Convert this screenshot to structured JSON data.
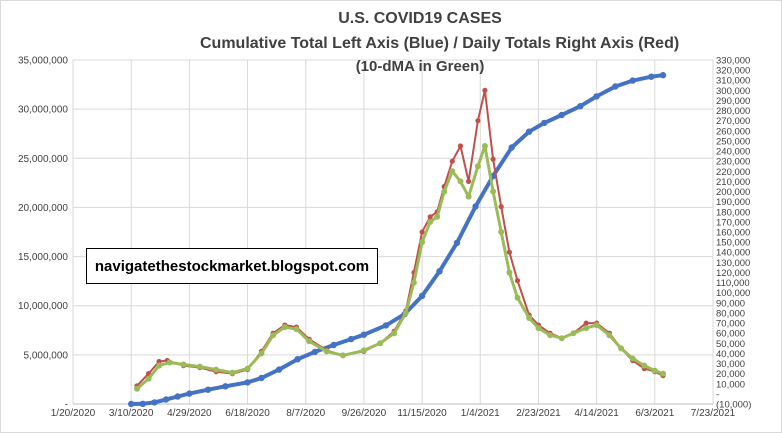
{
  "chart_data": {
    "type": "line",
    "title": "U.S. COVID19 CASES",
    "subtitle": "Cumulative Total Left Axis (Blue) / Daily Totals Right Axis (Red)",
    "subtitle2": "(10-dMA in Green)",
    "annotation": "navigatethestockmarket.blogspot.com",
    "x_tick_labels": [
      "1/20/2020",
      "3/10/2020",
      "4/29/2020",
      "6/18/2020",
      "8/7/2020",
      "9/26/2020",
      "11/15/2020",
      "1/4/2021",
      "2/23/2021",
      "4/14/2021",
      "6/3/2021",
      "7/23/2021"
    ],
    "x_range": [
      "2020-01-20",
      "2021-07-23"
    ],
    "y_left_range": [
      0,
      35000000
    ],
    "y_left_tick_labels": [
      "-",
      "5,000,000",
      "10,000,000",
      "15,000,000",
      "20,000,000",
      "25,000,000",
      "30,000,000",
      "35,000,000"
    ],
    "y_right_range": [
      -10000,
      330000
    ],
    "y_right_tick_labels": [
      "(10,000)",
      "-",
      "10,000",
      "20,000",
      "30,000",
      "40,000",
      "50,000",
      "60,000",
      "70,000",
      "80,000",
      "90,000",
      "100,000",
      "110,000",
      "120,000",
      "130,000",
      "140,000",
      "150,000",
      "160,000",
      "170,000",
      "180,000",
      "190,000",
      "200,000",
      "210,000",
      "220,000",
      "230,000",
      "240,000",
      "250,000",
      "260,000",
      "270,000",
      "280,000",
      "290,000",
      "300,000",
      "310,000",
      "320,000",
      "330,000"
    ],
    "grid": true,
    "series": [
      {
        "axis": "left",
        "color": "#4472c4",
        "x": [
          "2020-03-10",
          "2020-03-20",
          "2020-03-30",
          "2020-04-09",
          "2020-04-19",
          "2020-04-29",
          "2020-05-15",
          "2020-05-30",
          "2020-06-18",
          "2020-06-30",
          "2020-07-15",
          "2020-07-31",
          "2020-08-15",
          "2020-08-31",
          "2020-09-15",
          "2020-09-26",
          "2020-10-15",
          "2020-10-31",
          "2020-11-15",
          "2020-11-30",
          "2020-12-15",
          "2020-12-31",
          "2021-01-15",
          "2021-01-31",
          "2021-02-15",
          "2021-02-28",
          "2021-03-15",
          "2021-03-31",
          "2021-04-14",
          "2021-04-30",
          "2021-05-15",
          "2021-05-31",
          "2021-06-10"
        ],
        "values": [
          1000,
          20000,
          160000,
          460000,
          760000,
          1060000,
          1450000,
          1800000,
          2200000,
          2650000,
          3500000,
          4560000,
          5300000,
          6000000,
          6600000,
          7050000,
          8000000,
          9150000,
          11000000,
          13500000,
          16400000,
          20100000,
          23200000,
          26100000,
          27700000,
          28600000,
          29400000,
          30300000,
          31300000,
          32300000,
          32900000,
          33300000,
          33450000
        ]
      },
      {
        "axis": "right",
        "color": "#c0504d",
        "x": [
          "2020-03-15",
          "2020-03-25",
          "2020-04-03",
          "2020-04-10",
          "2020-04-24",
          "2020-05-08",
          "2020-05-22",
          "2020-06-05",
          "2020-06-18",
          "2020-06-30",
          "2020-07-10",
          "2020-07-20",
          "2020-07-30",
          "2020-08-10",
          "2020-08-25",
          "2020-09-08",
          "2020-09-26",
          "2020-10-10",
          "2020-10-22",
          "2020-11-01",
          "2020-11-08",
          "2020-11-15",
          "2020-11-22",
          "2020-11-28",
          "2020-12-04",
          "2020-12-11",
          "2020-12-18",
          "2020-12-25",
          "2021-01-02",
          "2021-01-08",
          "2021-01-15",
          "2021-01-22",
          "2021-01-29",
          "2021-02-05",
          "2021-02-15",
          "2021-02-23",
          "2021-03-05",
          "2021-03-15",
          "2021-03-25",
          "2021-04-05",
          "2021-04-14",
          "2021-04-25",
          "2021-05-05",
          "2021-05-15",
          "2021-05-25",
          "2021-06-03",
          "2021-06-10"
        ],
        "values": [
          8000,
          20000,
          32000,
          33000,
          28000,
          26000,
          22000,
          20000,
          24000,
          42000,
          60000,
          68000,
          66000,
          54000,
          43000,
          38000,
          42000,
          50000,
          62000,
          82000,
          120000,
          160000,
          175000,
          180000,
          205000,
          230000,
          245000,
          210000,
          270000,
          300000,
          232000,
          185000,
          140000,
          112000,
          78000,
          68000,
          60000,
          55000,
          60000,
          70000,
          70000,
          60000,
          45000,
          33000,
          25000,
          22000,
          18000
        ]
      },
      {
        "axis": "right",
        "color": "#9bbb59",
        "x": [
          "2020-03-15",
          "2020-03-25",
          "2020-04-03",
          "2020-04-12",
          "2020-04-24",
          "2020-05-08",
          "2020-05-22",
          "2020-06-05",
          "2020-06-18",
          "2020-06-30",
          "2020-07-10",
          "2020-07-20",
          "2020-07-30",
          "2020-08-10",
          "2020-08-25",
          "2020-09-08",
          "2020-09-26",
          "2020-10-10",
          "2020-10-22",
          "2020-11-01",
          "2020-11-08",
          "2020-11-15",
          "2020-11-22",
          "2020-11-28",
          "2020-12-04",
          "2020-12-11",
          "2020-12-18",
          "2020-12-25",
          "2021-01-02",
          "2021-01-08",
          "2021-01-15",
          "2021-01-22",
          "2021-01-29",
          "2021-02-05",
          "2021-02-15",
          "2021-02-23",
          "2021-03-05",
          "2021-03-15",
          "2021-03-25",
          "2021-04-05",
          "2021-04-14",
          "2021-04-25",
          "2021-05-05",
          "2021-05-15",
          "2021-05-25",
          "2021-06-03",
          "2021-06-10"
        ],
        "values": [
          5000,
          15000,
          28000,
          31000,
          29000,
          27000,
          24000,
          21000,
          25000,
          40000,
          58000,
          66000,
          64000,
          52000,
          42000,
          38000,
          43000,
          50000,
          60000,
          80000,
          110000,
          150000,
          170000,
          175000,
          200000,
          220000,
          210000,
          195000,
          225000,
          245000,
          200000,
          160000,
          120000,
          95000,
          75000,
          65000,
          58000,
          55000,
          60000,
          65000,
          68000,
          58000,
          45000,
          35000,
          28000,
          23000,
          20000
        ]
      }
    ]
  }
}
